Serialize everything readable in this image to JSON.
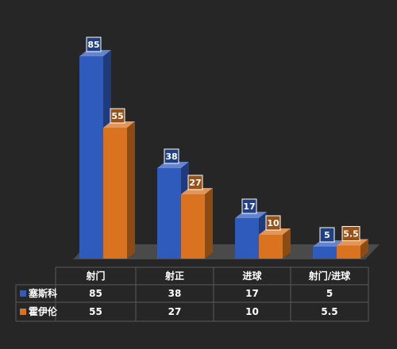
{
  "chart_data": {
    "type": "bar",
    "categories": [
      "射门",
      "射正",
      "进球",
      "射门/进球"
    ],
    "series": [
      {
        "name": "塞斯科",
        "values": [
          85,
          38,
          17,
          5
        ],
        "data_labels": [
          "85",
          "38",
          "17",
          "5"
        ],
        "table_labels": [
          "85",
          "38",
          "17",
          "5"
        ],
        "color": "#2f5bbd"
      },
      {
        "name": "霍伊伦",
        "values": [
          55,
          27,
          10,
          5.5
        ],
        "data_labels": [
          "55",
          "27",
          "10",
          "5.5"
        ],
        "table_labels": [
          "55",
          "27",
          "10",
          "5.5"
        ],
        "color": "#d9731f"
      }
    ],
    "ylim": [
      0,
      90
    ],
    "grid": false,
    "legend": "data-table",
    "data_table": true
  },
  "colors": {
    "background": "#262626",
    "floor": "#4a4a4a",
    "text": "#ffffff",
    "table_border": "#5a5a5a"
  }
}
